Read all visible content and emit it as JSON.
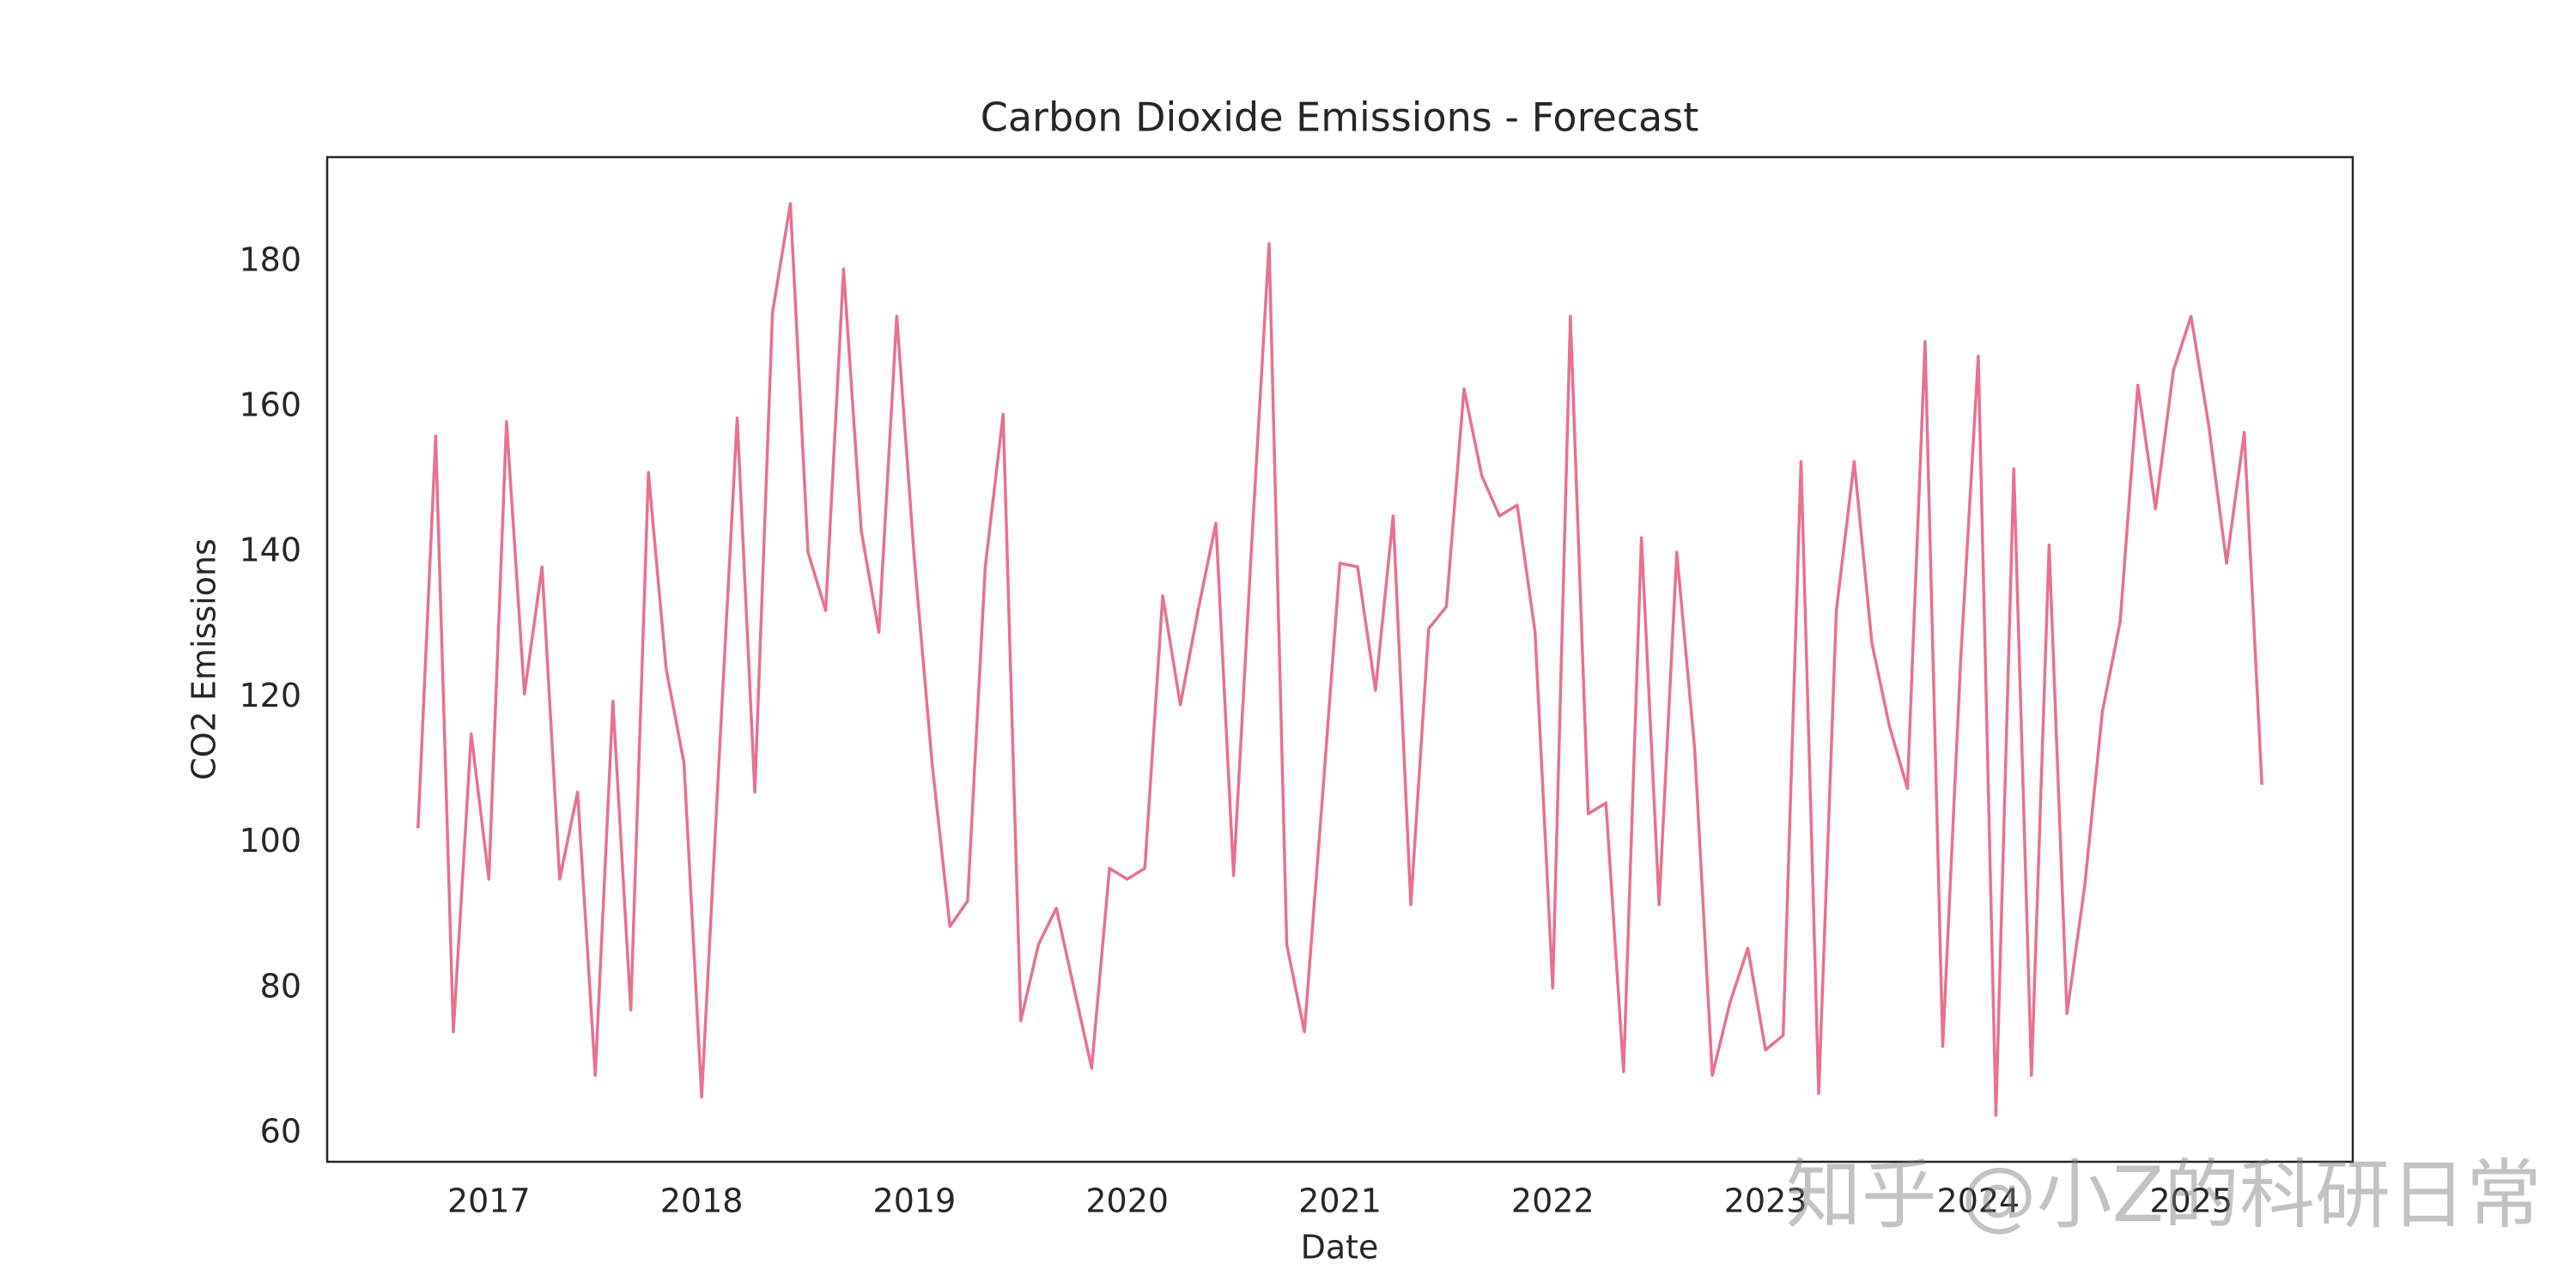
{
  "chart_data": {
    "type": "line",
    "title": "Carbon Dioxide Emissions - Forecast",
    "x_label": "Date",
    "y_label": "CO2 Emissions",
    "watermark": "知乎 @小Z的科研日常",
    "x": [
      2016.667,
      2016.75,
      2016.833,
      2016.917,
      2017,
      2017.083,
      2017.167,
      2017.25,
      2017.333,
      2017.417,
      2017.5,
      2017.583,
      2017.667,
      2017.75,
      2017.833,
      2017.917,
      2018,
      2018.083,
      2018.167,
      2018.25,
      2018.333,
      2018.417,
      2018.5,
      2018.583,
      2018.667,
      2018.75,
      2018.833,
      2018.917,
      2019,
      2019.083,
      2019.167,
      2019.25,
      2019.333,
      2019.417,
      2019.5,
      2019.583,
      2019.667,
      2019.75,
      2019.833,
      2019.917,
      2020,
      2020.083,
      2020.167,
      2020.25,
      2020.333,
      2020.417,
      2020.5,
      2020.583,
      2020.667,
      2020.75,
      2020.833,
      2020.917,
      2021,
      2021.083,
      2021.167,
      2021.25,
      2021.333,
      2021.417,
      2021.5,
      2021.583,
      2021.667,
      2021.75,
      2021.833,
      2021.917,
      2022,
      2022.083,
      2022.167,
      2022.25,
      2022.333,
      2022.417,
      2022.5,
      2022.583,
      2022.667,
      2022.75,
      2022.833,
      2022.917,
      2023,
      2023.083,
      2023.167,
      2023.25,
      2023.333,
      2023.417,
      2023.5,
      2023.583,
      2023.667,
      2023.75,
      2023.833,
      2023.917,
      2024,
      2024.083,
      2024.167,
      2024.25,
      2024.333,
      2024.417,
      2024.5,
      2024.583,
      2024.667,
      2024.75,
      2024.833,
      2024.917,
      2025,
      2025.083,
      2025.167,
      2025.25,
      2025.333
    ],
    "series": [
      {
        "name": "CO2 Emissions",
        "color": "#e8718f",
        "values": [
          102,
          156,
          74,
          115,
          95,
          158,
          120.5,
          138,
          95,
          107,
          68,
          119.5,
          77,
          151,
          124,
          111,
          65,
          112,
          158.5,
          107,
          173,
          188,
          140,
          132,
          179,
          143,
          129,
          172.5,
          139,
          111,
          88.5,
          92,
          138,
          159,
          75.5,
          86,
          91,
          80,
          69,
          96.5,
          95,
          96.5,
          134,
          119,
          132,
          144,
          95.5,
          140,
          182.5,
          86,
          74,
          106,
          138.5,
          138,
          121,
          145,
          91.5,
          129.5,
          132.5,
          162.5,
          150.5,
          145,
          146.5,
          129,
          80,
          172.5,
          104,
          105.5,
          68.5,
          142,
          91.5,
          140,
          113,
          68,
          78,
          85.5,
          71.5,
          73.5,
          152.5,
          65.5,
          132,
          152.5,
          127.5,
          116,
          107.5,
          169,
          72,
          125,
          167,
          62.5,
          151.5,
          68,
          141,
          76.5,
          94,
          118,
          130.5,
          163,
          146,
          165,
          172.5,
          157.5,
          138.5,
          156.5,
          108
        ]
      }
    ],
    "xlim": [
      2016.24,
      2025.76
    ],
    "xticks": [
      2017,
      2018,
      2019,
      2020,
      2021,
      2022,
      2023,
      2024,
      2025
    ],
    "ylim": [
      56.1,
      194.4
    ],
    "yticks": [
      60,
      80,
      100,
      120,
      140,
      160,
      180
    ],
    "grid": false
  }
}
